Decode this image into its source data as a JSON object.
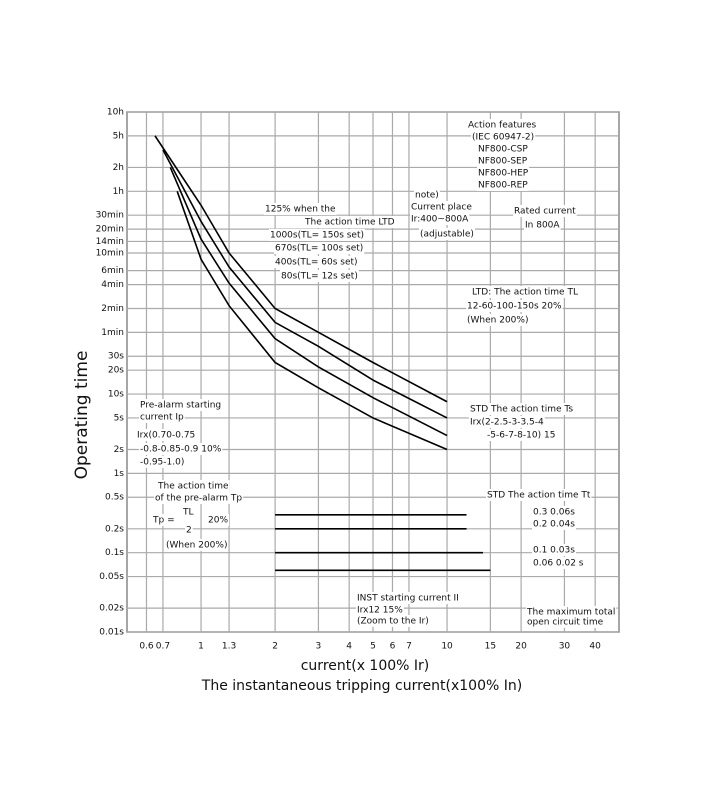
{
  "chart_data": {
    "type": "line",
    "ylabel": "Operating time",
    "xlabel": "current(x  100% Ir)",
    "xlabel2": "The instantaneous tripping current(x100% In)",
    "xscale": "log",
    "yscale": "log",
    "grid": true,
    "color": "#000000",
    "xlim": [
      0.5,
      50
    ],
    "ylim": [
      0.01,
      36000
    ],
    "xticks": [
      0.6,
      0.7,
      1,
      1.3,
      2,
      3,
      4,
      5,
      6,
      7,
      10,
      15,
      20,
      30,
      40
    ],
    "yticks": [
      {
        "value": 36000,
        "label": "10h"
      },
      {
        "value": 18000,
        "label": "5h"
      },
      {
        "value": 7200,
        "label": "2h"
      },
      {
        "value": 3600,
        "label": "1h"
      },
      {
        "value": 1800,
        "label": "30min"
      },
      {
        "value": 1200,
        "label": "20min"
      },
      {
        "value": 840,
        "label": "14min"
      },
      {
        "value": 600,
        "label": "10min"
      },
      {
        "value": 360,
        "label": "6min"
      },
      {
        "value": 240,
        "label": "4min"
      },
      {
        "value": 120,
        "label": "2min"
      },
      {
        "value": 60,
        "label": "1min"
      },
      {
        "value": 30,
        "label": "30s"
      },
      {
        "value": 20,
        "label": "20s"
      },
      {
        "value": 10,
        "label": "10s"
      },
      {
        "value": 5,
        "label": "5s"
      },
      {
        "value": 2,
        "label": "2s"
      },
      {
        "value": 1,
        "label": "1s"
      },
      {
        "value": 0.5,
        "label": "0.5s"
      },
      {
        "value": 0.2,
        "label": "0.2s"
      },
      {
        "value": 0.1,
        "label": "0.1s"
      },
      {
        "value": 0.05,
        "label": "0.05s"
      },
      {
        "value": 0.02,
        "label": "0.02s"
      },
      {
        "value": 0.01,
        "label": "0.01s"
      }
    ],
    "series": [
      {
        "x": [
          0.65,
          1,
          1.3,
          2,
          3,
          5,
          10
        ],
        "values": [
          18000,
          2400,
          600,
          120,
          60,
          25,
          8
        ]
      },
      {
        "x": [
          0.7,
          1,
          1.3,
          2,
          3,
          5,
          10
        ],
        "values": [
          12000,
          1500,
          400,
          80,
          40,
          15,
          5
        ]
      },
      {
        "x": [
          0.75,
          1,
          1.3,
          2,
          3,
          5,
          10
        ],
        "values": [
          7200,
          900,
          250,
          50,
          22,
          9,
          3
        ]
      },
      {
        "x": [
          0.8,
          1,
          1.3,
          2,
          3,
          5,
          10
        ],
        "values": [
          3600,
          500,
          130,
          25,
          12,
          5,
          2
        ]
      },
      {
        "x": [
          2,
          12
        ],
        "values": [
          0.3,
          0.3
        ]
      },
      {
        "x": [
          2,
          12
        ],
        "values": [
          0.2,
          0.2
        ]
      },
      {
        "x": [
          2,
          14
        ],
        "values": [
          0.1,
          0.1
        ]
      },
      {
        "x": [
          2,
          15
        ],
        "values": [
          0.06,
          0.06
        ]
      }
    ],
    "annotations": [
      "Action features",
      "(IEC 60947-2)",
      "NF800-CSP",
      "NF800-SEP",
      "NF800-HEP",
      "NF800-REP",
      "note)",
      "Current place",
      "Ir:400~800A",
      "(adjustable)",
      "Rated current",
      "In 800A",
      "125% when the",
      "The action time LTD",
      "1000s(TL= 150s set)",
      "670s(TL= 100s set)",
      "400s(TL=  60s set)",
      "80s(TL=  12s set)",
      "LTD: The action time TL",
      "12-60-100-150s   20%",
      "(When 200%)",
      "Pre-alarm starting",
      "current Ip",
      "Irx(0.70-0.75",
      "-0.8-0.85-0.9    10%",
      "-0.95-1.0)",
      "STD  The action time Ts",
      "Irx(2-2.5-3-3.5-4",
      "-5-6-7-8-10)  15",
      "The action time",
      "of the pre-alarm Tp",
      "Tp  =",
      "TL",
      "2",
      "20%",
      "(When 200%)",
      "STD  The action time Tt",
      "0.3   0.06s",
      "0.2   0.04s",
      "0.1   0.03s",
      "0.06   0.02 s",
      "INST starting current II",
      "Irx12       15%",
      "(Zoom to the Ir)",
      "The maximum total",
      "open circuit time"
    ]
  }
}
